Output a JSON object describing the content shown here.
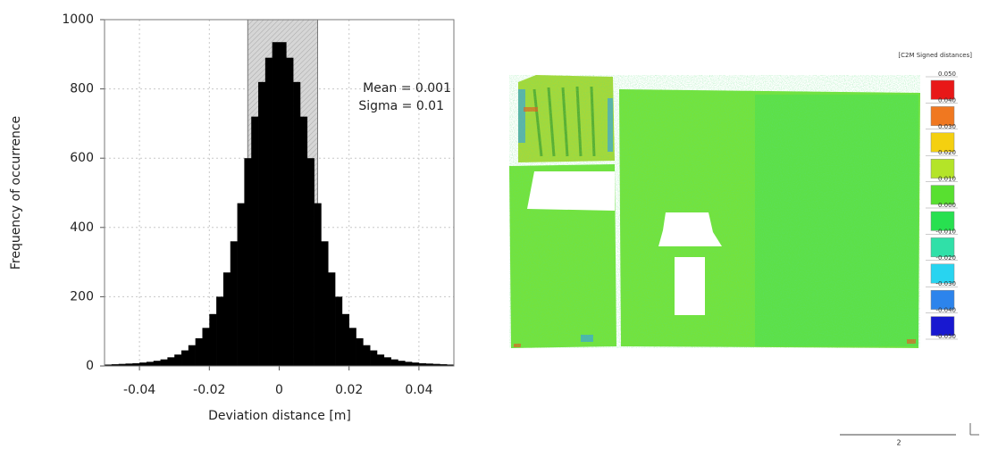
{
  "chart_data": {
    "type": "histogram",
    "x_label": "Deviation distance [m]",
    "y_label": "Frequency of occurrence",
    "annotations": [
      "Mean = 0.001",
      "Sigma = 0.01"
    ],
    "color": "#000000",
    "highlight_range": [
      -0.009,
      0.011
    ],
    "grid": true,
    "bins": [
      -0.05,
      -0.048,
      -0.046,
      -0.044,
      -0.042,
      -0.04,
      -0.038,
      -0.036,
      -0.034,
      -0.032,
      -0.03,
      -0.028,
      -0.026,
      -0.024,
      -0.022,
      -0.02,
      -0.018,
      -0.016,
      -0.014,
      -0.012,
      -0.01,
      -0.008,
      -0.006,
      -0.004,
      -0.002,
      0,
      0.002,
      0.004,
      0.006,
      0.008,
      0.01,
      0.012,
      0.014,
      0.016,
      0.018,
      0.02,
      0.022,
      0.024,
      0.026,
      0.028,
      0.03,
      0.032,
      0.034,
      0.036,
      0.038,
      0.04,
      0.042,
      0.044,
      0.046,
      0.048,
      0.05
    ],
    "values": [
      4,
      5,
      6,
      7,
      8,
      10,
      12,
      15,
      19,
      25,
      33,
      45,
      60,
      80,
      110,
      150,
      200,
      270,
      360,
      470,
      600,
      720,
      820,
      890,
      935,
      935,
      890,
      820,
      720,
      600,
      470,
      360,
      270,
      200,
      150,
      110,
      80,
      60,
      45,
      33,
      25,
      19,
      15,
      12,
      10,
      8,
      7,
      6,
      5,
      4
    ],
    "xlim": [
      -0.05,
      0.05
    ],
    "ylim": [
      0,
      1000
    ],
    "xticks": [
      -0.04,
      -0.02,
      0,
      0.02,
      0.04
    ],
    "yticks": [
      0,
      200,
      400,
      600,
      800,
      1000
    ]
  },
  "point_cloud": {
    "colorbar": {
      "title": "[C2M Signed distances]",
      "clim": [
        -0.05,
        0.05
      ],
      "ticks": [
        {
          "value": 0.05,
          "label": "0.050"
        },
        {
          "value": 0.04,
          "label": "0.040"
        },
        {
          "value": 0.03,
          "label": "0.030"
        },
        {
          "value": 0.02,
          "label": "0.020"
        },
        {
          "value": 0.01,
          "label": "0.010"
        },
        {
          "value": 0,
          "label": "0.000"
        },
        {
          "value": -0.01,
          "label": "-0.010"
        },
        {
          "value": -0.02,
          "label": "-0.020"
        },
        {
          "value": -0.03,
          "label": "-0.030"
        },
        {
          "value": -0.04,
          "label": "-0.040"
        },
        {
          "value": -0.05,
          "label": "-0.050"
        }
      ],
      "colors": [
        "#e81818",
        "#f07820",
        "#f4d010",
        "#b4e428",
        "#58e030",
        "#28e050",
        "#30e0a8",
        "#28d4f0",
        "#2c84ec",
        "#1818d0"
      ]
    },
    "scale_bar": {
      "label": "2"
    }
  }
}
